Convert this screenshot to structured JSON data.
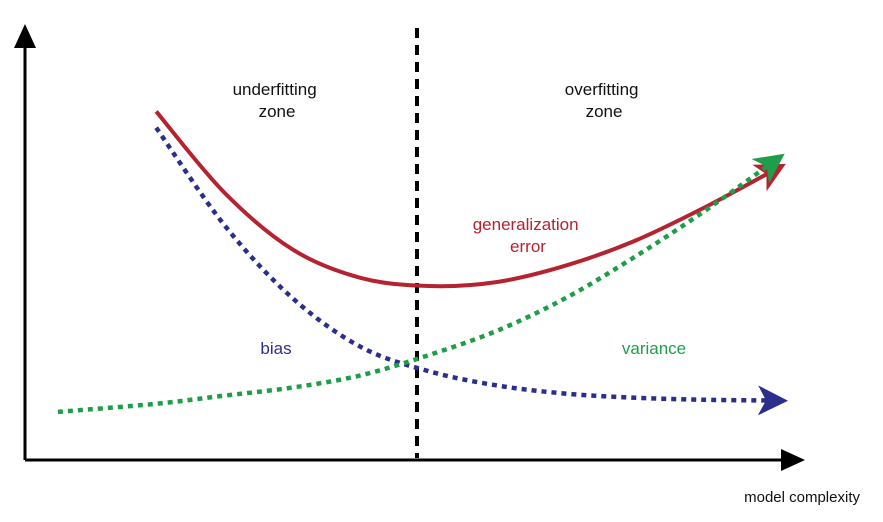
{
  "chart_data": {
    "type": "line",
    "xlabel": "model complexity",
    "ylabel": "",
    "grid": false,
    "annotations": {
      "underfitting": [
        "underfitting",
        "zone"
      ],
      "overfitting": [
        "overfitting",
        "zone"
      ]
    },
    "x": [
      0,
      0.1,
      0.2,
      0.3,
      0.4,
      0.5,
      0.6,
      0.7,
      0.8,
      0.9,
      1.0
    ],
    "series": [
      {
        "name": "generalization error",
        "label": [
          "generalization",
          "error"
        ],
        "color": "#b52230",
        "style": "solid",
        "values": [
          1.02,
          0.76,
          0.56,
          0.42,
          0.35,
          0.33,
          0.34,
          0.38,
          0.44,
          0.52,
          0.61
        ]
      },
      {
        "name": "bias",
        "label": [
          "bias"
        ],
        "color": "#2b2f8c",
        "style": "dotted",
        "values": [
          1.02,
          0.72,
          0.48,
          0.3,
          0.18,
          0.12,
          0.085,
          0.065,
          0.055,
          0.05,
          0.048
        ]
      },
      {
        "name": "variance",
        "label": [
          "variance"
        ],
        "color": "#1f9e4a",
        "style": "dotted",
        "values": [
          0.02,
          0.04,
          0.06,
          0.08,
          0.11,
          0.16,
          0.22,
          0.3,
          0.4,
          0.51,
          0.63
        ]
      }
    ],
    "divider": {
      "x": 0.5,
      "style": "dashed",
      "color": "#000000"
    }
  }
}
